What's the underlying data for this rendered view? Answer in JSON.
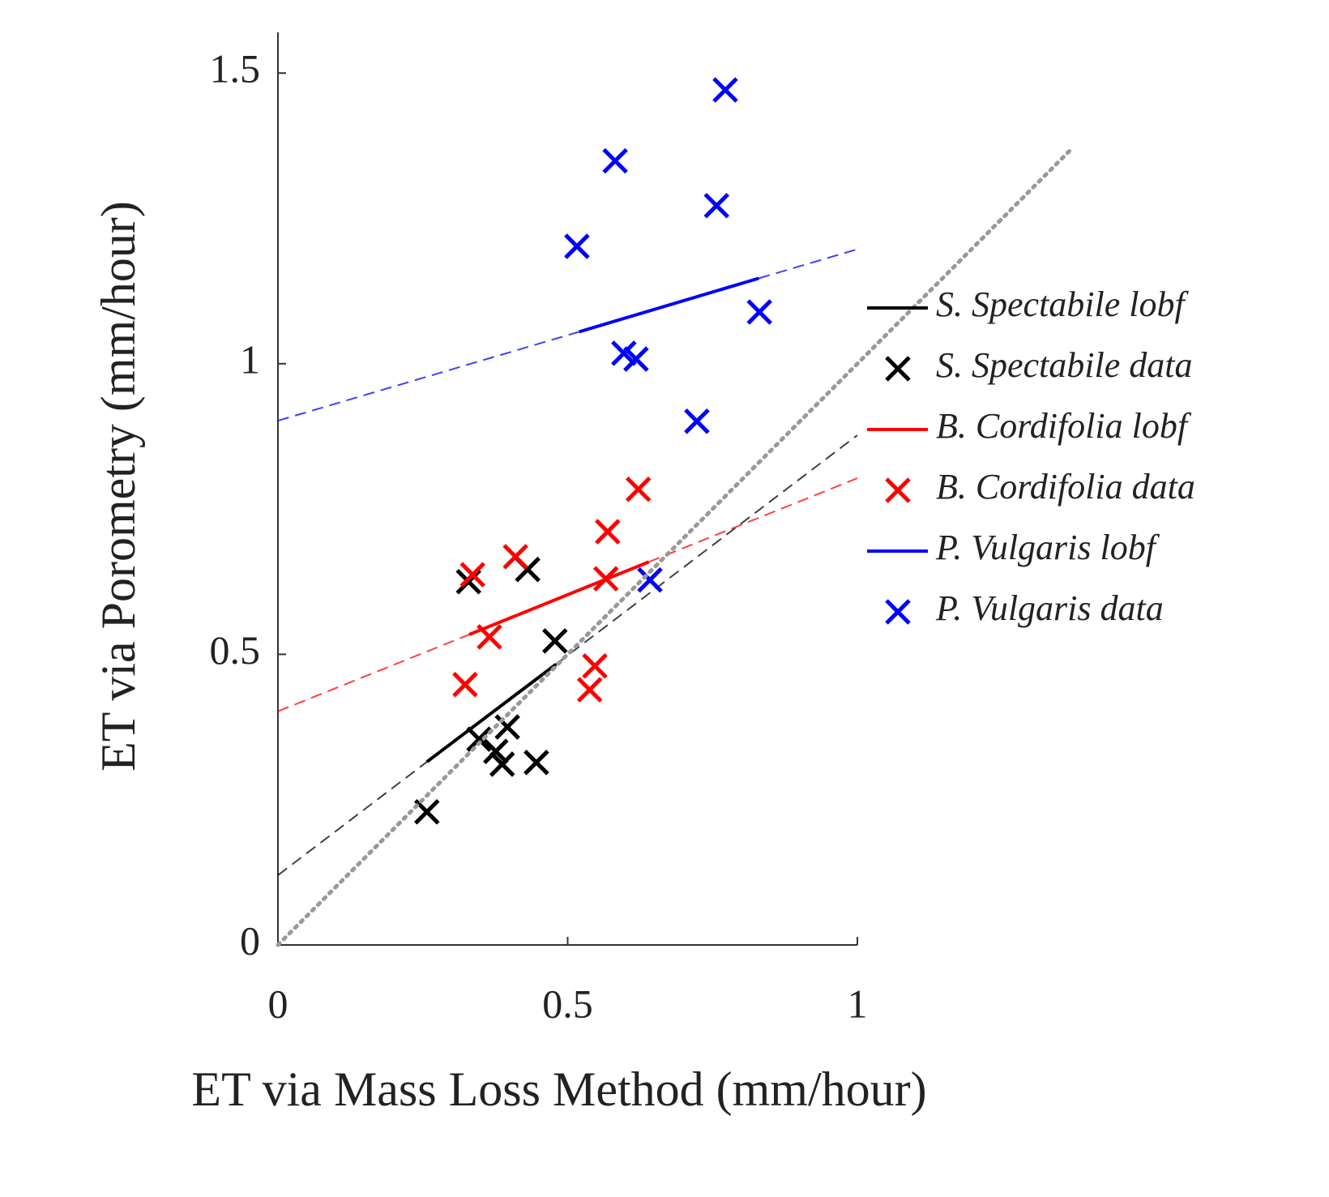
{
  "chart_data": {
    "type": "scatter",
    "xlabel": "ET via Mass Loss Method (mm/hour)",
    "ylabel": "ET via Porometry (mm/hour)",
    "xlim": [
      0,
      1
    ],
    "ylim": [
      0,
      1.57
    ],
    "xticks": [
      0,
      0.5,
      1
    ],
    "yticks": [
      0,
      0.5,
      1,
      1.5
    ],
    "series": [
      {
        "name": "S. Spectabile lobf",
        "type": "line",
        "color": "#000000",
        "x": [
          0,
          0.257,
          0.48,
          1
        ],
        "values": [
          0.12,
          0.315,
          0.483,
          0.877
        ],
        "dash": [
          "dashed",
          "solid",
          "dashed"
        ]
      },
      {
        "name": "S. Spectabile data",
        "type": "marker",
        "color": "#000000",
        "x": [
          0.329,
          0.431,
          0.478,
          0.396,
          0.347,
          0.376,
          0.387,
          0.446,
          0.257
        ],
        "values": [
          0.625,
          0.646,
          0.523,
          0.375,
          0.354,
          0.333,
          0.311,
          0.314,
          0.229
        ]
      },
      {
        "name": "B. Cordifolia lobf",
        "type": "line",
        "color": "#ff0000",
        "x": [
          0,
          0.33,
          0.64,
          1
        ],
        "values": [
          0.402,
          0.534,
          0.659,
          0.803
        ],
        "dash": [
          "dashed",
          "solid",
          "dashed"
        ]
      },
      {
        "name": "B. Cordifolia data",
        "type": "marker",
        "color": "#ff0000",
        "x": [
          0.336,
          0.41,
          0.569,
          0.622,
          0.566,
          0.365,
          0.323,
          0.547,
          0.538
        ],
        "values": [
          0.637,
          0.668,
          0.711,
          0.784,
          0.63,
          0.53,
          0.448,
          0.48,
          0.439
        ]
      },
      {
        "name": "P. Vulgaris lobf",
        "type": "line",
        "color": "#0000ff",
        "x": [
          0,
          0.52,
          0.83,
          1
        ],
        "values": [
          0.902,
          1.055,
          1.147,
          1.197
        ],
        "dash": [
          "dashed",
          "solid",
          "dashed"
        ]
      },
      {
        "name": "P. Vulgaris data",
        "type": "marker",
        "color": "#0000ff",
        "x": [
          0.772,
          0.582,
          0.757,
          0.516,
          0.831,
          0.597,
          0.618,
          0.723,
          0.642
        ],
        "values": [
          1.471,
          1.349,
          1.272,
          1.202,
          1.089,
          1.018,
          1.008,
          0.901,
          0.628
        ]
      },
      {
        "type": "line",
        "color": "#999999",
        "x": [
          0,
          1.37
        ],
        "values": [
          0,
          1.37
        ],
        "dash": [
          "dotted"
        ]
      }
    ]
  }
}
